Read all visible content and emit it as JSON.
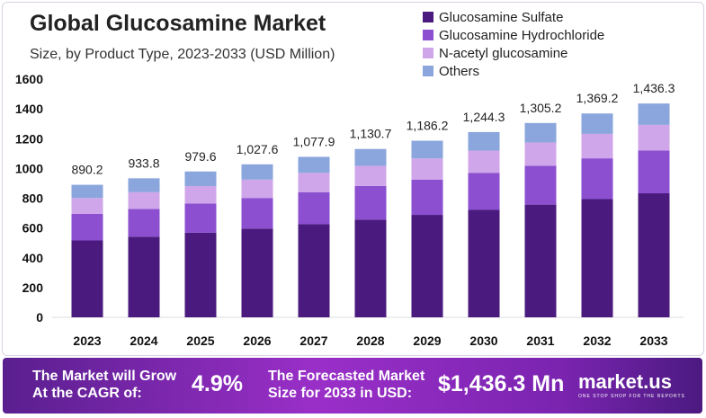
{
  "chart_data": {
    "type": "bar",
    "stacked": true,
    "title": "Global Glucosamine Market",
    "subtitle": "Size, by Product Type, 2023-2033 (USD Million)",
    "categories": [
      "2023",
      "2024",
      "2025",
      "2026",
      "2027",
      "2028",
      "2029",
      "2030",
      "2031",
      "2032",
      "2033"
    ],
    "totals": [
      "890.2",
      "933.8",
      "979.6",
      "1,027.6",
      "1,077.9",
      "1,130.7",
      "1,186.2",
      "1,244.3",
      "1,305.2",
      "1,369.2",
      "1,436.3"
    ],
    "series": [
      {
        "name": "Glucosamine Sulfate",
        "color": "#4a1a7e",
        "values": [
          516.3,
          541.6,
          568.2,
          596.0,
          625.2,
          655.8,
          688.0,
          721.7,
          757.0,
          794.1,
          833.1
        ]
      },
      {
        "name": "Glucosamine Hydrochloride",
        "color": "#8b4fd0",
        "values": [
          178.0,
          186.8,
          195.9,
          205.5,
          215.6,
          226.1,
          237.2,
          248.9,
          261.0,
          273.8,
          287.3
        ]
      },
      {
        "name": "N-acetyl glucosamine",
        "color": "#d0a6ea",
        "values": [
          106.8,
          112.1,
          117.6,
          123.3,
          129.3,
          135.7,
          142.3,
          149.3,
          156.6,
          164.3,
          172.4
        ]
      },
      {
        "name": "Others",
        "color": "#8aa6dc",
        "values": [
          89.1,
          93.3,
          97.9,
          102.8,
          107.8,
          113.1,
          118.7,
          124.4,
          130.6,
          137.0,
          143.5
        ]
      }
    ],
    "yticks": [
      "0",
      "200",
      "400",
      "600",
      "800",
      "1000",
      "1200",
      "1400",
      "1600"
    ],
    "ylim": [
      0,
      1600
    ],
    "legend": "top-right",
    "grid": false
  },
  "footer": {
    "cagr_label": "The Market will Grow At the CAGR of:",
    "cagr_value": "4.9%",
    "forecast_label": "The Forecasted Market Size for 2033 in USD:",
    "forecast_value": "$1,436.3 Mn",
    "logo": "market.us",
    "logo_tagline": "ONE STOP SHOP FOR THE REPORTS"
  }
}
